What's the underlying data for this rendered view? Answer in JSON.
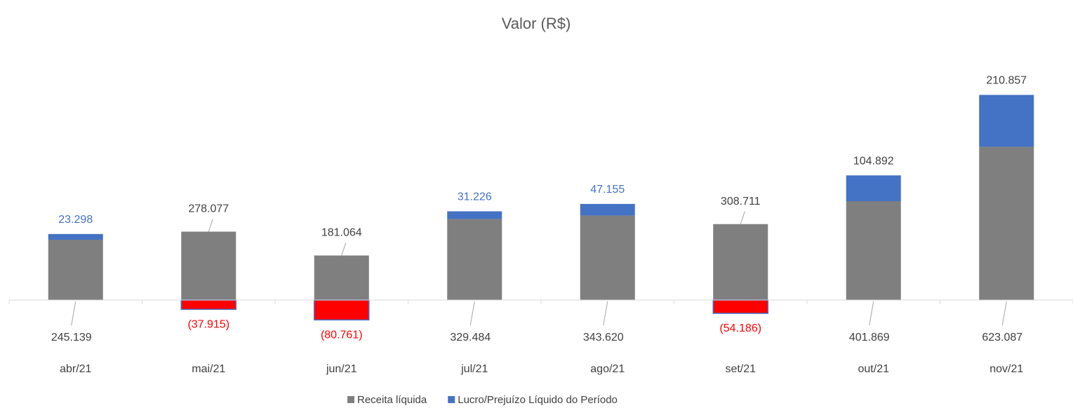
{
  "chart_data": {
    "type": "bar",
    "stacked": true,
    "title": "Valor (R$)",
    "categories": [
      "abr/21",
      "mai/21",
      "jun/21",
      "jul/21",
      "ago/21",
      "set/21",
      "out/21",
      "nov/21"
    ],
    "series": [
      {
        "name": "Receita líquida",
        "color": "#7f7f7f",
        "values": [
          245139,
          278077,
          181064,
          329484,
          343620,
          308711,
          401869,
          623087
        ],
        "value_labels": [
          "245.139",
          "278.077",
          "181.064",
          "329.484",
          "343.620",
          "308.711",
          "401.869",
          "623.087"
        ]
      },
      {
        "name": "Lucro/Prejuízo Líquido do Período",
        "color": "#4472c4",
        "negative_color": "#ff0000",
        "values": [
          23298,
          -37915,
          -80761,
          31226,
          47155,
          -54186,
          104892,
          210857
        ],
        "value_labels": [
          "23.298",
          "(37.915)",
          "(80.761)",
          "31.226",
          "47.155",
          "(54.186)",
          "104.892",
          "210.857"
        ]
      }
    ],
    "ylim": [
      -200000,
      1000000
    ],
    "legend": "bottom"
  }
}
